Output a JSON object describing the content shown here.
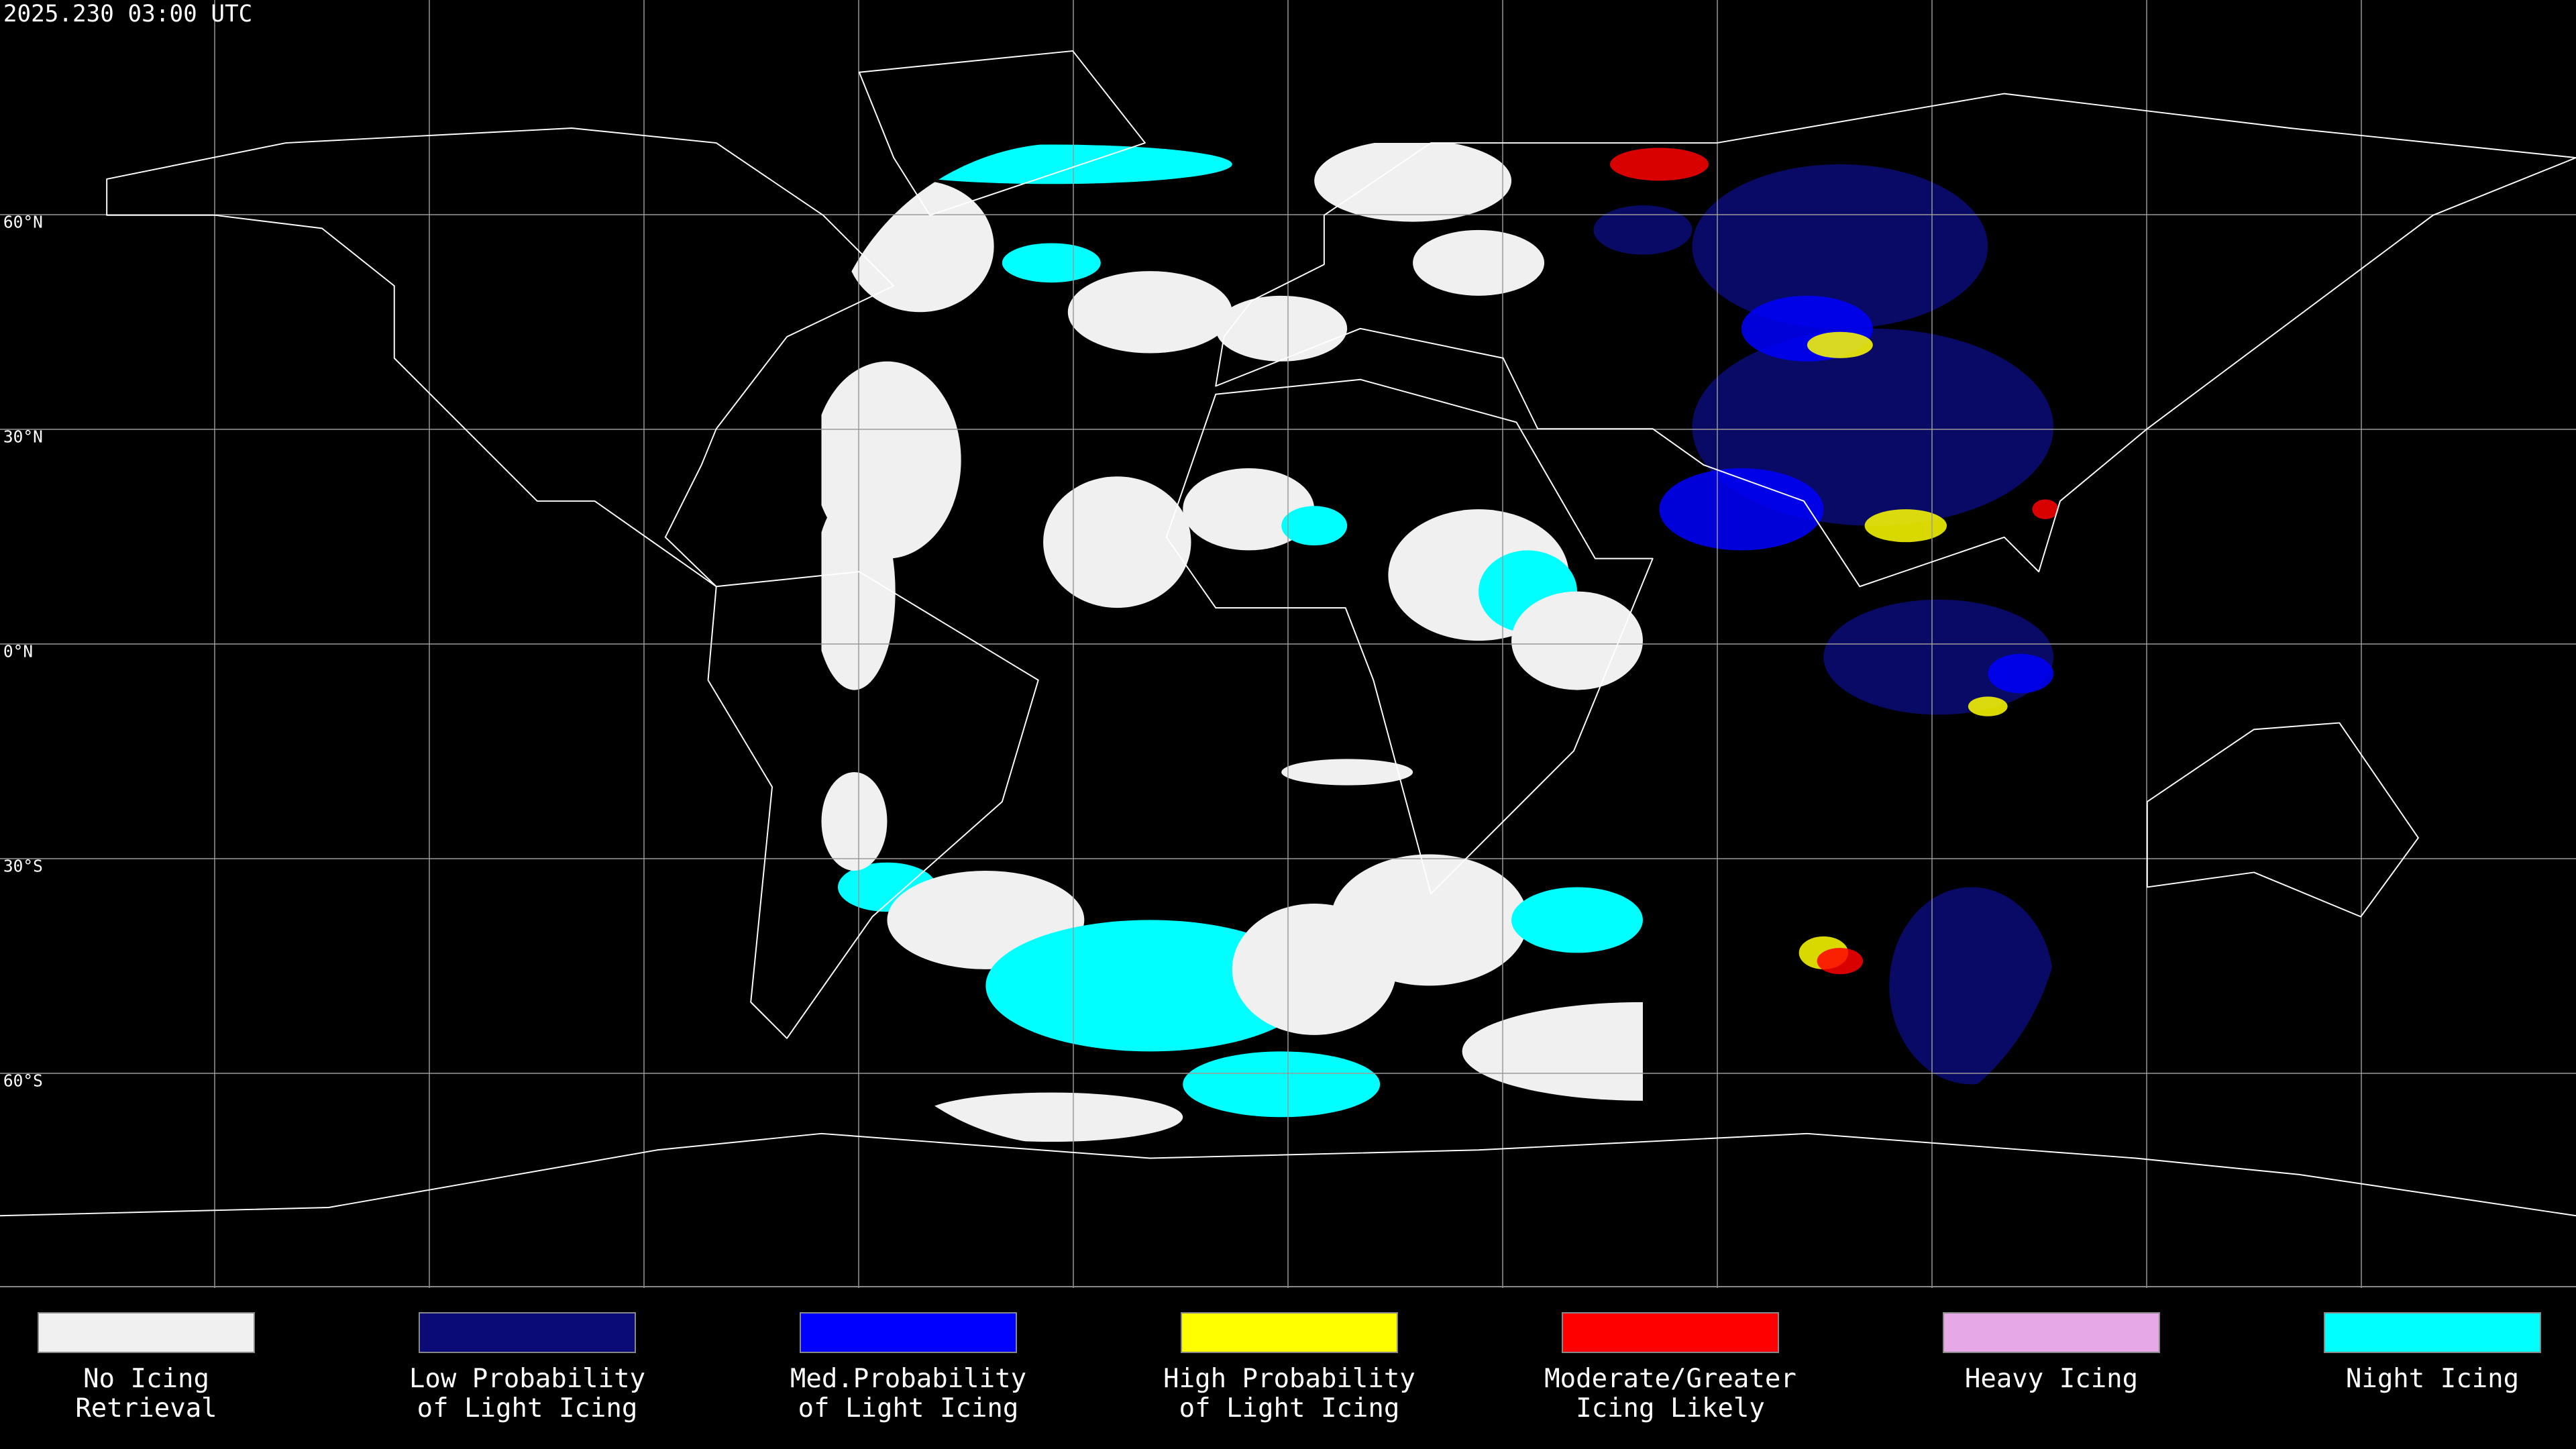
{
  "header": {
    "timestamp": "2025.230 03:00 UTC"
  },
  "map": {
    "latitude_labels": [
      {
        "value": 60,
        "label": "60°N"
      },
      {
        "value": 30,
        "label": "30°N"
      },
      {
        "value": 0,
        "label": "0°N"
      },
      {
        "value": -30,
        "label": "30°S"
      },
      {
        "value": -60,
        "label": "60°S"
      }
    ]
  },
  "legend": [
    {
      "label": [
        "No Icing",
        "Retrieval"
      ],
      "color": "#f0f0f0"
    },
    {
      "label": [
        "Low Probability",
        "of Light Icing"
      ],
      "color": "#0b0b78"
    },
    {
      "label": [
        "Med.Probability",
        "of Light Icing"
      ],
      "color": "#0000ff"
    },
    {
      "label": [
        "High Probability",
        "of Light Icing"
      ],
      "color": "#ffff00"
    },
    {
      "label": [
        "Moderate/Greater",
        "Icing Likely"
      ],
      "color": "#ff0000"
    },
    {
      "label": [
        "Heavy Icing"
      ],
      "color": "#e6a8e6"
    },
    {
      "label": [
        "Night Icing"
      ],
      "color": "#00ffff"
    }
  ]
}
